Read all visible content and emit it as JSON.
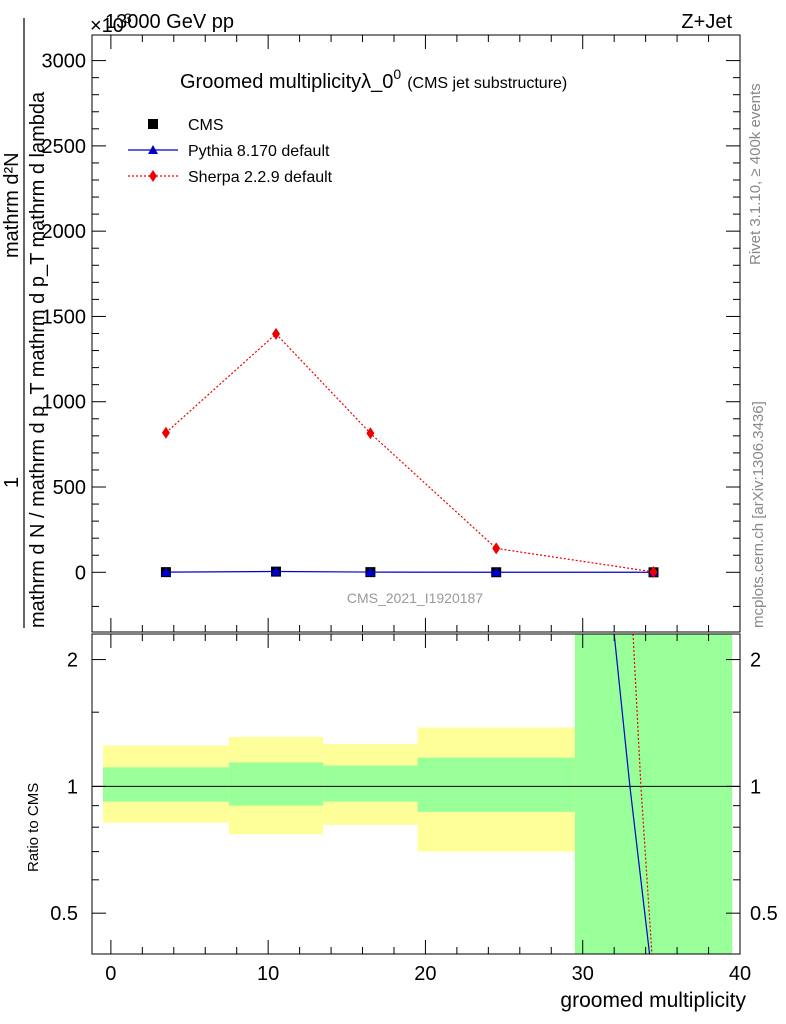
{
  "header": {
    "left": "13000 GeV pp",
    "right": "Z+Jet",
    "exponent": "×10",
    "exponent_power": "3"
  },
  "side_labels": {
    "rivet": "Rivet 3.1.10, ≥ 400k events",
    "mcplots": "mcplots.cern.ch [arXiv:1306.3436]"
  },
  "chart_data": [
    {
      "type": "line",
      "title": "Groomed multiplicityλ_0",
      "title_sup": "0",
      "subtitle": "(CMS jet substructure)",
      "watermark": "CMS_2021_I1920187",
      "ylabel_numerator": "1",
      "ylabel_numerator2": "mathrm d²N",
      "ylabel_denominator": "mathrm d N / mathrm d p_T mathrm d p_T mathrm d lambda",
      "xlim": [
        -1.2,
        40
      ],
      "ylim": [
        -350,
        3150
      ],
      "y_scale_factor": 1000,
      "yticks": [
        0,
        500,
        1000,
        1500,
        2000,
        2500,
        3000
      ],
      "ytick_labels": [
        "0",
        "500",
        "1000",
        "1500",
        "2000",
        "2500",
        "3000"
      ],
      "legend_position": "top-left",
      "series": [
        {
          "name": "CMS",
          "color": "#000000",
          "marker": "square",
          "x": [
            3.5,
            10.5,
            16.5,
            24.5,
            34.5
          ],
          "y": [
            1.0,
            4.0,
            1.0,
            0.3,
            0.005
          ]
        },
        {
          "name": "Pythia 8.170 default",
          "color": "#0000cc",
          "marker": "triangle",
          "line": "solid",
          "x": [
            3.5,
            10.5,
            16.5,
            24.5,
            34.5
          ],
          "y": [
            1.2,
            4.5,
            1.3,
            0.4,
            0.05
          ]
        },
        {
          "name": "Sherpa 2.2.9 default",
          "color": "#ee0000",
          "marker": "diamond",
          "line": "dotted",
          "x": [
            3.5,
            10.5,
            16.5,
            24.5,
            34.5
          ],
          "y": [
            818,
            1398,
            815,
            140,
            2
          ]
        }
      ]
    },
    {
      "type": "line",
      "ylabel": "Ratio to CMS",
      "xlabel": "groomed multiplicity",
      "xlim": [
        -1.2,
        40
      ],
      "ylim": [
        0.4,
        2.3
      ],
      "y_scale": "log",
      "xticks": [
        0,
        10,
        20,
        30,
        40
      ],
      "xtick_labels": [
        "0",
        "10",
        "20",
        "30",
        "40"
      ],
      "yticks": [
        0.5,
        1,
        2
      ],
      "ytick_labels": [
        "0.5",
        "1",
        "2"
      ],
      "bins": [
        {
          "xlo": -0.5,
          "xhi": 7.5,
          "green_lo": 0.92,
          "green_hi": 1.11,
          "yellow_lo": 0.82,
          "yellow_hi": 1.25
        },
        {
          "xlo": 7.5,
          "xhi": 13.5,
          "green_lo": 0.9,
          "green_hi": 1.14,
          "yellow_lo": 0.77,
          "yellow_hi": 1.31
        },
        {
          "xlo": 13.5,
          "xhi": 19.5,
          "green_lo": 0.92,
          "green_hi": 1.12,
          "yellow_lo": 0.81,
          "yellow_hi": 1.26
        },
        {
          "xlo": 19.5,
          "xhi": 29.5,
          "green_lo": 0.87,
          "green_hi": 1.17,
          "yellow_lo": 0.7,
          "yellow_hi": 1.38
        },
        {
          "xlo": 29.5,
          "xhi": 39.5,
          "green_lo": 0.4,
          "green_hi": 2.3,
          "yellow_lo": 0.4,
          "yellow_hi": 2.3
        }
      ],
      "ratio_lines": [
        {
          "name": "Pythia 8.170 default",
          "color": "#0000cc",
          "style": "solid",
          "points": [
            [
              32.0,
              2.3
            ],
            [
              33.0,
              1.0
            ],
            [
              34.25,
              0.4
            ]
          ]
        },
        {
          "name": "Sherpa 2.2.9 default",
          "color": "#ee0000",
          "style": "dotted",
          "points": [
            [
              33.2,
              2.3
            ],
            [
              33.7,
              1.0
            ],
            [
              34.4,
              0.4
            ]
          ]
        }
      ]
    }
  ]
}
